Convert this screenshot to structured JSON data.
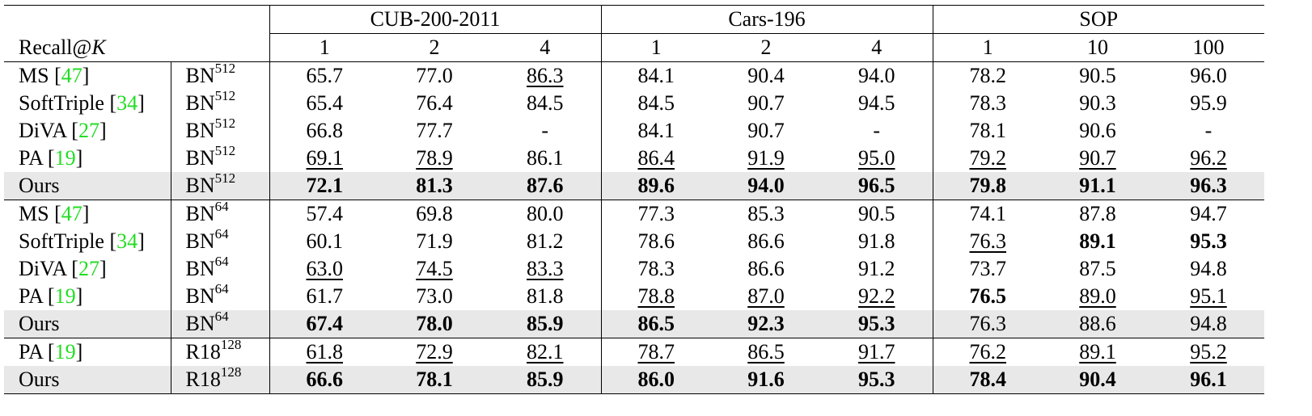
{
  "header": {
    "metric_label": "Recall@",
    "metric_var": "K",
    "datasets": [
      {
        "name": "CUB-200-2011",
        "ks": [
          "1",
          "2",
          "4"
        ]
      },
      {
        "name": "Cars-196",
        "ks": [
          "1",
          "2",
          "4"
        ]
      },
      {
        "name": "SOP",
        "ks": [
          "1",
          "10",
          "100"
        ]
      }
    ]
  },
  "groups": [
    {
      "rows": [
        {
          "method": "MS",
          "ref": "47",
          "bb": "BN",
          "dim": "512",
          "ours": false,
          "vals": [
            {
              "v": "65.7",
              "s": ""
            },
            {
              "v": "77.0",
              "s": ""
            },
            {
              "v": "86.3",
              "s": "second"
            },
            {
              "v": "84.1",
              "s": ""
            },
            {
              "v": "90.4",
              "s": ""
            },
            {
              "v": "94.0",
              "s": ""
            },
            {
              "v": "78.2",
              "s": ""
            },
            {
              "v": "90.5",
              "s": ""
            },
            {
              "v": "96.0",
              "s": ""
            }
          ]
        },
        {
          "method": "SoftTriple",
          "ref": "34",
          "bb": "BN",
          "dim": "512",
          "ours": false,
          "vals": [
            {
              "v": "65.4",
              "s": ""
            },
            {
              "v": "76.4",
              "s": ""
            },
            {
              "v": "84.5",
              "s": ""
            },
            {
              "v": "84.5",
              "s": ""
            },
            {
              "v": "90.7",
              "s": ""
            },
            {
              "v": "94.5",
              "s": ""
            },
            {
              "v": "78.3",
              "s": ""
            },
            {
              "v": "90.3",
              "s": ""
            },
            {
              "v": "95.9",
              "s": ""
            }
          ]
        },
        {
          "method": "DiVA",
          "ref": "27",
          "bb": "BN",
          "dim": "512",
          "ours": false,
          "vals": [
            {
              "v": "66.8",
              "s": ""
            },
            {
              "v": "77.7",
              "s": ""
            },
            {
              "v": "-",
              "s": ""
            },
            {
              "v": "84.1",
              "s": ""
            },
            {
              "v": "90.7",
              "s": ""
            },
            {
              "v": "-",
              "s": ""
            },
            {
              "v": "78.1",
              "s": ""
            },
            {
              "v": "90.6",
              "s": ""
            },
            {
              "v": "-",
              "s": ""
            }
          ]
        },
        {
          "method": "PA",
          "ref": "19",
          "bb": "BN",
          "dim": "512",
          "ours": false,
          "vals": [
            {
              "v": "69.1",
              "s": "second"
            },
            {
              "v": "78.9",
              "s": "second"
            },
            {
              "v": "86.1",
              "s": ""
            },
            {
              "v": "86.4",
              "s": "second"
            },
            {
              "v": "91.9",
              "s": "second"
            },
            {
              "v": "95.0",
              "s": "second"
            },
            {
              "v": "79.2",
              "s": "second"
            },
            {
              "v": "90.7",
              "s": "second"
            },
            {
              "v": "96.2",
              "s": "second"
            }
          ]
        },
        {
          "method": "Ours",
          "ref": "",
          "bb": "BN",
          "dim": "512",
          "ours": true,
          "vals": [
            {
              "v": "72.1",
              "s": "best"
            },
            {
              "v": "81.3",
              "s": "best"
            },
            {
              "v": "87.6",
              "s": "best"
            },
            {
              "v": "89.6",
              "s": "best"
            },
            {
              "v": "94.0",
              "s": "best"
            },
            {
              "v": "96.5",
              "s": "best"
            },
            {
              "v": "79.8",
              "s": "best"
            },
            {
              "v": "91.1",
              "s": "best"
            },
            {
              "v": "96.3",
              "s": "best"
            }
          ]
        }
      ]
    },
    {
      "rows": [
        {
          "method": "MS",
          "ref": "47",
          "bb": "BN",
          "dim": "64",
          "ours": false,
          "vals": [
            {
              "v": "57.4",
              "s": ""
            },
            {
              "v": "69.8",
              "s": ""
            },
            {
              "v": "80.0",
              "s": ""
            },
            {
              "v": "77.3",
              "s": ""
            },
            {
              "v": "85.3",
              "s": ""
            },
            {
              "v": "90.5",
              "s": ""
            },
            {
              "v": "74.1",
              "s": ""
            },
            {
              "v": "87.8",
              "s": ""
            },
            {
              "v": "94.7",
              "s": ""
            }
          ]
        },
        {
          "method": "SoftTriple",
          "ref": "34",
          "bb": "BN",
          "dim": "64",
          "ours": false,
          "vals": [
            {
              "v": "60.1",
              "s": ""
            },
            {
              "v": "71.9",
              "s": ""
            },
            {
              "v": "81.2",
              "s": ""
            },
            {
              "v": "78.6",
              "s": ""
            },
            {
              "v": "86.6",
              "s": ""
            },
            {
              "v": "91.8",
              "s": ""
            },
            {
              "v": "76.3",
              "s": "second"
            },
            {
              "v": "89.1",
              "s": "best"
            },
            {
              "v": "95.3",
              "s": "best"
            }
          ]
        },
        {
          "method": "DiVA",
          "ref": "27",
          "bb": "BN",
          "dim": "64",
          "ours": false,
          "vals": [
            {
              "v": "63.0",
              "s": "second"
            },
            {
              "v": "74.5",
              "s": "second"
            },
            {
              "v": "83.3",
              "s": "second"
            },
            {
              "v": "78.3",
              "s": ""
            },
            {
              "v": "86.6",
              "s": ""
            },
            {
              "v": "91.2",
              "s": ""
            },
            {
              "v": "73.7",
              "s": ""
            },
            {
              "v": "87.5",
              "s": ""
            },
            {
              "v": "94.8",
              "s": ""
            }
          ]
        },
        {
          "method": "PA",
          "ref": "19",
          "bb": "BN",
          "dim": "64",
          "ours": false,
          "vals": [
            {
              "v": "61.7",
              "s": ""
            },
            {
              "v": "73.0",
              "s": ""
            },
            {
              "v": "81.8",
              "s": ""
            },
            {
              "v": "78.8",
              "s": "second"
            },
            {
              "v": "87.0",
              "s": "second"
            },
            {
              "v": "92.2",
              "s": "second"
            },
            {
              "v": "76.5",
              "s": "best"
            },
            {
              "v": "89.0",
              "s": "second"
            },
            {
              "v": "95.1",
              "s": "second"
            }
          ]
        },
        {
          "method": "Ours",
          "ref": "",
          "bb": "BN",
          "dim": "64",
          "ours": true,
          "vals": [
            {
              "v": "67.4",
              "s": "best"
            },
            {
              "v": "78.0",
              "s": "best"
            },
            {
              "v": "85.9",
              "s": "best"
            },
            {
              "v": "86.5",
              "s": "best"
            },
            {
              "v": "92.3",
              "s": "best"
            },
            {
              "v": "95.3",
              "s": "best"
            },
            {
              "v": "76.3",
              "s": ""
            },
            {
              "v": "88.6",
              "s": ""
            },
            {
              "v": "94.8",
              "s": ""
            }
          ]
        }
      ]
    },
    {
      "rows": [
        {
          "method": "PA",
          "ref": "19",
          "bb": "R18",
          "dim": "128",
          "ours": false,
          "vals": [
            {
              "v": "61.8",
              "s": "second"
            },
            {
              "v": "72.9",
              "s": "second"
            },
            {
              "v": "82.1",
              "s": "second"
            },
            {
              "v": "78.7",
              "s": "second"
            },
            {
              "v": "86.5",
              "s": "second"
            },
            {
              "v": "91.7",
              "s": "second"
            },
            {
              "v": "76.2",
              "s": "second"
            },
            {
              "v": "89.1",
              "s": "second"
            },
            {
              "v": "95.2",
              "s": "second"
            }
          ]
        },
        {
          "method": "Ours",
          "ref": "",
          "bb": "R18",
          "dim": "128",
          "ours": true,
          "vals": [
            {
              "v": "66.6",
              "s": "best"
            },
            {
              "v": "78.1",
              "s": "best"
            },
            {
              "v": "85.9",
              "s": "best"
            },
            {
              "v": "86.0",
              "s": "best"
            },
            {
              "v": "91.6",
              "s": "best"
            },
            {
              "v": "95.3",
              "s": "best"
            },
            {
              "v": "78.4",
              "s": "best"
            },
            {
              "v": "90.4",
              "s": "best"
            },
            {
              "v": "96.1",
              "s": "best"
            }
          ]
        }
      ]
    }
  ]
}
